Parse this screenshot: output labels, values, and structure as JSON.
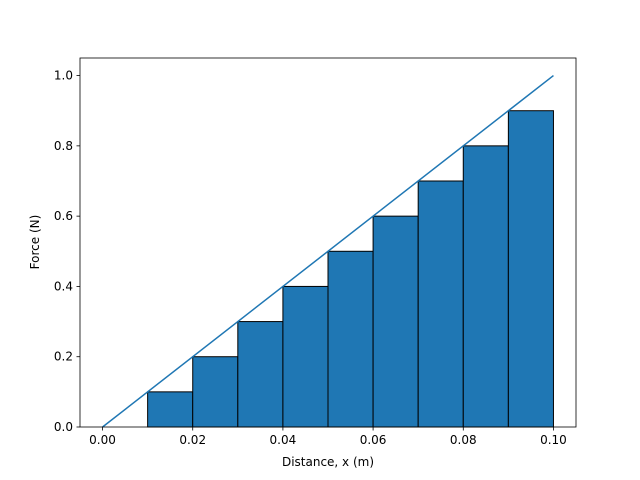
{
  "chart_data": {
    "type": "histogram",
    "xlabel": "Distance, x (m)",
    "ylabel": "Force (N)",
    "bins": [
      0,
      0.01,
      0.02,
      0.03,
      0.04,
      0.05,
      0.06,
      0.07,
      0.08,
      0.09,
      0.1
    ],
    "values": [
      0,
      0.1,
      0.2,
      0.3,
      0.4,
      0.5,
      0.6,
      0.7,
      0.8,
      0.9
    ],
    "color": "#1f77b4",
    "edgecolor": "#000000",
    "line": {
      "x": [
        0,
        0.1
      ],
      "values": [
        0,
        1
      ],
      "color": "#1f77b4"
    },
    "xlim": [
      -0.005,
      0.105
    ],
    "xticks": [
      {
        "value": 0,
        "label": "0.00"
      },
      {
        "value": 0.02,
        "label": "0.02"
      },
      {
        "value": 0.04,
        "label": "0.04"
      },
      {
        "value": 0.06,
        "label": "0.06"
      },
      {
        "value": 0.08,
        "label": "0.08"
      },
      {
        "value": 0.1,
        "label": "0.10"
      }
    ],
    "ylim": [
      0,
      1.05
    ],
    "yticks": [
      {
        "value": 0,
        "label": "0.0"
      },
      0.2,
      0.4,
      0.6,
      0.8,
      {
        "value": 1,
        "label": "1.0"
      }
    ]
  }
}
